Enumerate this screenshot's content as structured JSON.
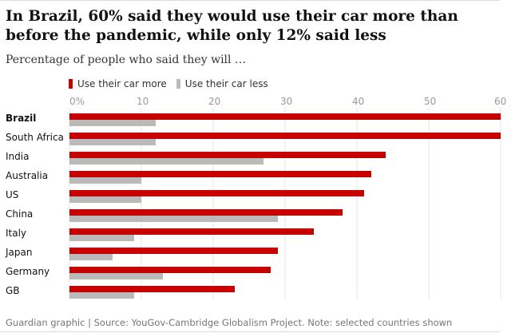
{
  "title": "In Brazil, 60% said they would use their car more than before the pandemic, while only 12% said less",
  "subtitle": "Percentage of people who said they will …",
  "source": "Guardian graphic | Source: YouGov-Cambridge Globalism Project. Note: selected countries shown",
  "legend": [
    {
      "label": "Use their car more",
      "color": "#c70000"
    },
    {
      "label": "Use their car less",
      "color": "#bababa"
    }
  ],
  "chart_data": {
    "type": "bar",
    "orientation": "horizontal",
    "title": "In Brazil, 60% said they would use their car more than before the pandemic, while only 12% said less",
    "subtitle": "Percentage of people who said they will …",
    "xlim": [
      0,
      60
    ],
    "ticks": [
      0,
      10,
      20,
      30,
      40,
      50,
      60
    ],
    "tick_labels": [
      "0%",
      "10",
      "20",
      "30",
      "40",
      "50",
      "60"
    ],
    "grid": true,
    "legend_position": "top-left",
    "categories": [
      "Brazil",
      "South Africa",
      "India",
      "Australia",
      "US",
      "China",
      "Italy",
      "Japan",
      "Germany",
      "GB"
    ],
    "highlight_category": "Brazil",
    "series": [
      {
        "name": "Use their car more",
        "color": "#c70000",
        "values": [
          60,
          60,
          44,
          42,
          41,
          38,
          34,
          29,
          28,
          23
        ]
      },
      {
        "name": "Use their car less",
        "color": "#bababa",
        "values": [
          12,
          12,
          27,
          10,
          10,
          29,
          9,
          6,
          13,
          9
        ]
      }
    ]
  }
}
